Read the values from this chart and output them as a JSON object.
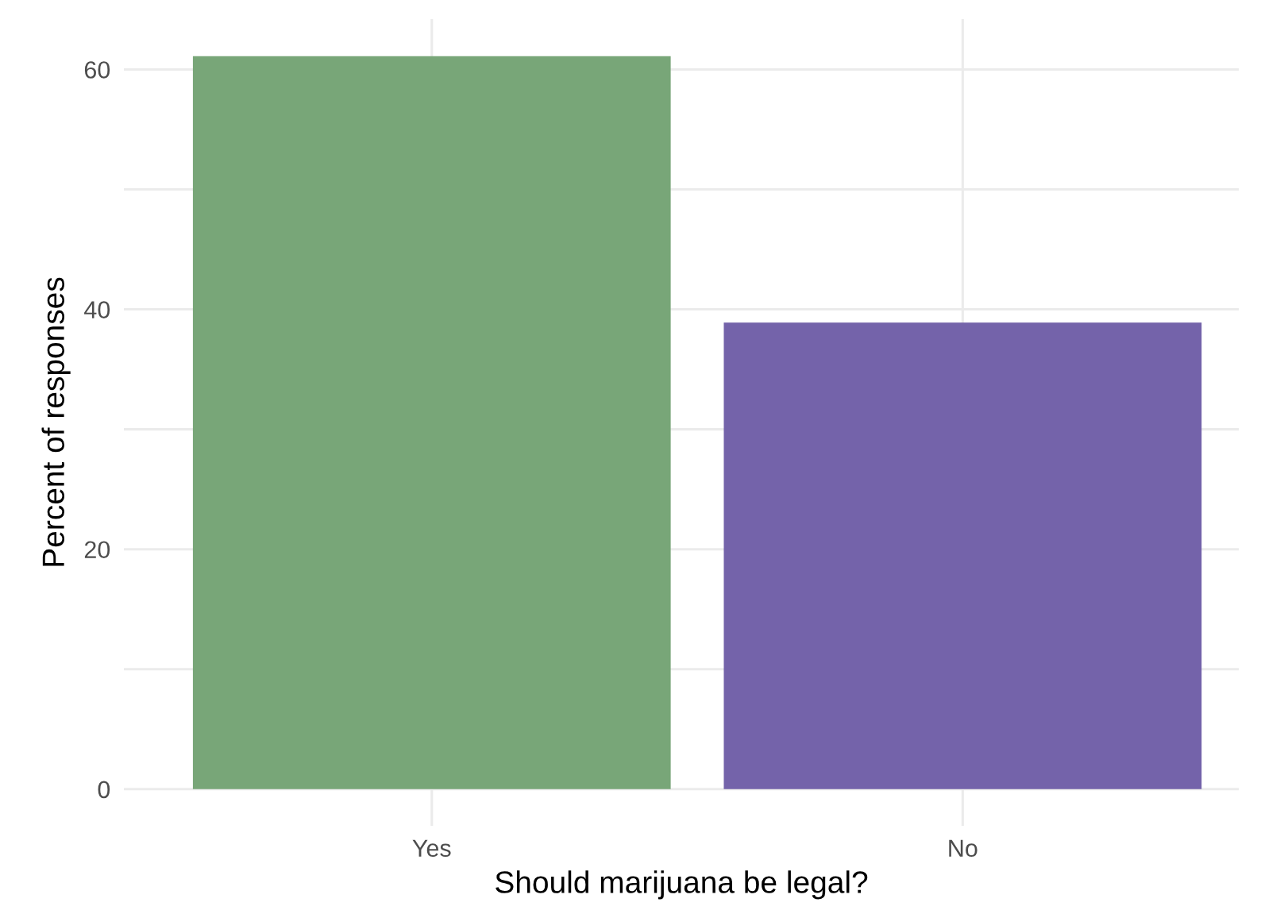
{
  "chart_data": {
    "type": "bar",
    "xlabel": "Should marijuana be legal?",
    "ylabel": "Percent of responses",
    "categories": [
      "Yes",
      "No"
    ],
    "values": [
      61.1,
      38.9
    ],
    "colors": [
      "#78a678",
      "#7463aa"
    ],
    "ylim": [
      -3.06,
      64.2
    ],
    "yticks": [
      0,
      {
        "value": 10,
        "label": null
      },
      20,
      {
        "value": 30,
        "label": null
      },
      40,
      {
        "value": 50,
        "label": null
      },
      60
    ],
    "grid": true
  }
}
